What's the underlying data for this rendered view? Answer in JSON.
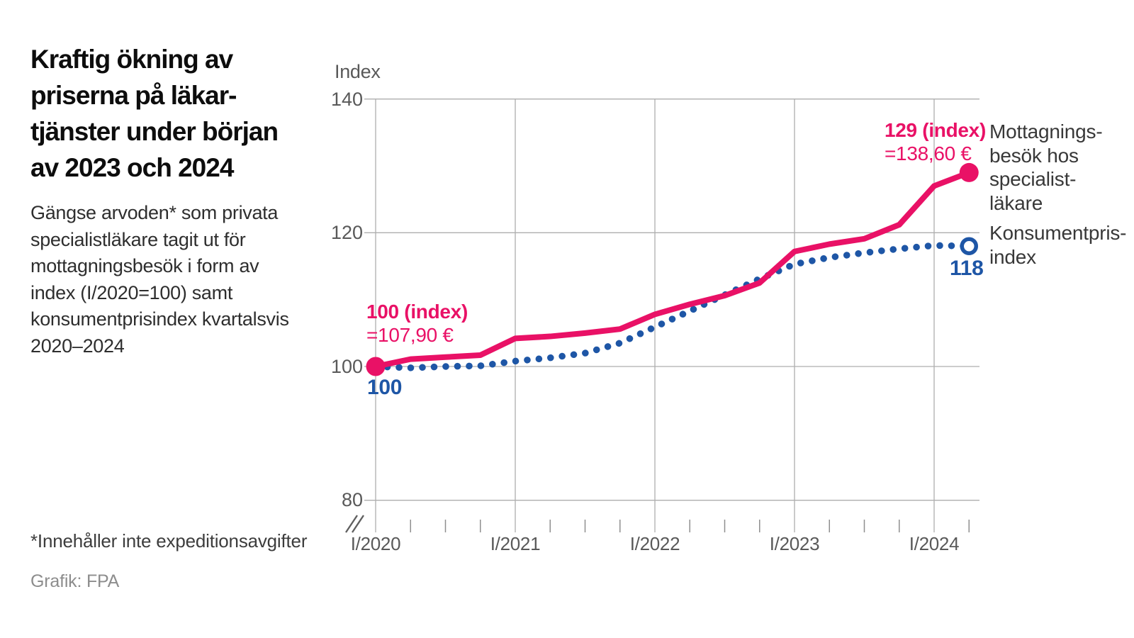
{
  "header": {
    "title": "Kraftig ökning av\npriserna på läkar-\ntjänster under början\nav 2023 och 2024",
    "subtitle": "Gängse arvoden* som privata\nspecialistläkare tagit ut för\nmottagningsbesök i form av\nindex (I/2020=100) samt\nkonsumentprisindex kvartalsvis\n2020–2024"
  },
  "footer": {
    "footnote": "*Innehåller inte expeditionsavgifter",
    "credit": "Grafik: FPA"
  },
  "chart_data": {
    "type": "line",
    "ylabel": "Index",
    "ylim": [
      80,
      140
    ],
    "axis_break_below": 80,
    "grid": true,
    "legend_position": "right",
    "y_ticks": [
      140,
      120,
      100,
      80
    ],
    "y_tick_labels": [
      "140",
      "120",
      "100",
      "80"
    ],
    "x": [
      "I/2020",
      "II/2020",
      "III/2020",
      "IV/2020",
      "I/2021",
      "II/2021",
      "III/2021",
      "IV/2021",
      "I/2022",
      "II/2022",
      "III/2022",
      "IV/2022",
      "I/2023",
      "II/2023",
      "III/2023",
      "IV/2023",
      "I/2024",
      "II/2024"
    ],
    "x_tick_labels": [
      "I/2020",
      "I/2021",
      "I/2022",
      "I/2023",
      "I/2024"
    ],
    "series": [
      {
        "name": "Mottagnings-\nbesök hos\nspecialist-\nläkare",
        "style": "solid",
        "color": "#e91166",
        "values": [
          100,
          101.1,
          101.4,
          101.7,
          104.2,
          104.5,
          105,
          105.6,
          107.8,
          109.3,
          110.6,
          112.5,
          117.2,
          118.3,
          119.1,
          121.2,
          127,
          129
        ]
      },
      {
        "name": "Konsumentpris-\nindex",
        "style": "dotted",
        "color": "#1e56a6",
        "values": [
          100,
          99.8,
          100,
          100.1,
          100.8,
          101.3,
          102,
          103.5,
          105.9,
          108.3,
          110.7,
          113.1,
          115.3,
          116.3,
          117,
          117.6,
          118.1,
          118
        ]
      }
    ],
    "annotations": {
      "start_index": "100 (index)",
      "start_euro": "=107,90 €",
      "start_cpi": "100",
      "end_index": "129 (index)",
      "end_euro": "=138,60 €",
      "end_cpi": "118"
    }
  }
}
